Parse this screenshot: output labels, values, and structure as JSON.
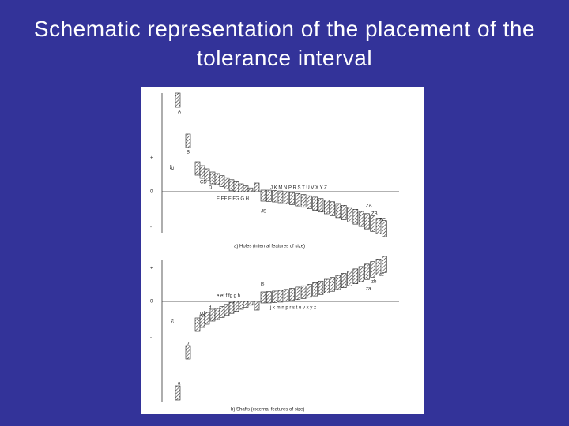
{
  "title": "Schematic representation of the placement of the tolerance interval",
  "diagram": {
    "holes": {
      "caption": "a) Holes (internal features of size)",
      "plus": "+",
      "zero": "0",
      "minus": "-",
      "deviation": "EI",
      "labels": [
        "A",
        "B",
        "C",
        "CD",
        "D",
        "E EF F FG G H",
        "JS",
        "J K M N P R S T U V X Y Z",
        "ZA",
        "ZB",
        "ZC"
      ]
    },
    "shafts": {
      "caption": "b) Shafts (external features of size)",
      "plus": "+",
      "zero": "0",
      "minus": "-",
      "deviation": "es",
      "labels": [
        "a",
        "b",
        "c",
        "cd",
        "d",
        "e ef f fg g h",
        "js",
        "j k m n p r s t u v x y z",
        "za",
        "zb",
        "zc"
      ]
    }
  }
}
